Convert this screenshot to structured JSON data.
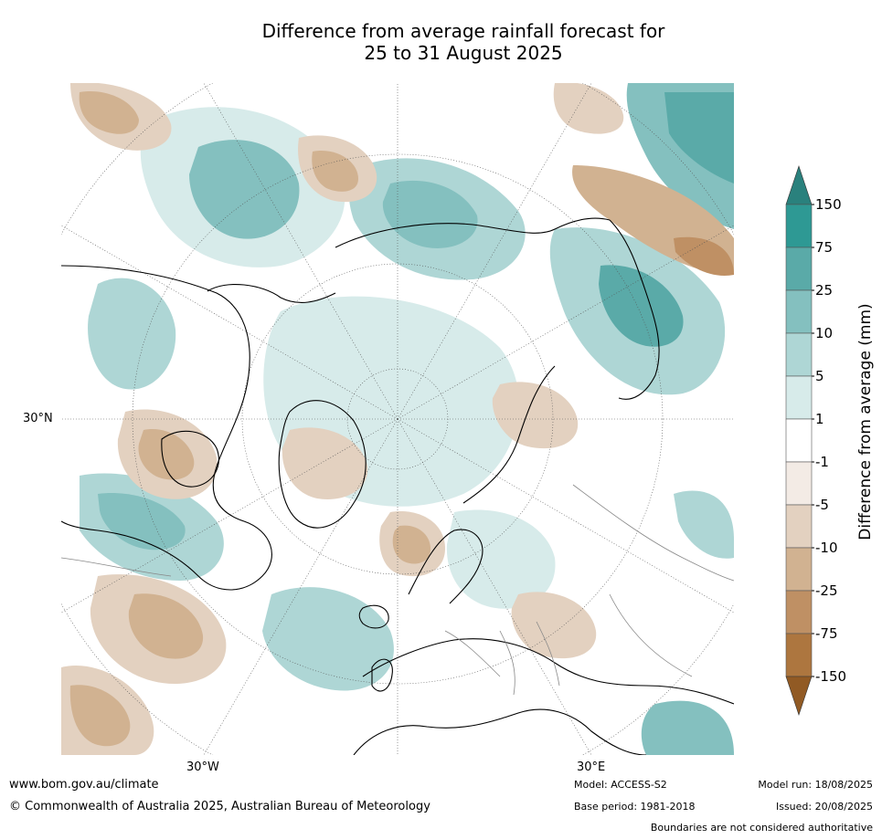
{
  "title_line1": "Difference from average rainfall forecast for",
  "title_line2": "25 to 31 August 2025",
  "map": {
    "lat_label_left": "30°N",
    "lon_label_left": "30°W",
    "lon_label_right": "30°E"
  },
  "legend": {
    "label": "Difference from average (mm)",
    "ticks": [
      "150",
      "75",
      "25",
      "10",
      "5",
      "1",
      "-1",
      "-5",
      "-10",
      "-25",
      "-75",
      "-150"
    ],
    "colors": [
      "#2a817d",
      "#2e9994",
      "#5aaaa8",
      "#84c0bf",
      "#aed6d5",
      "#d7ebea",
      "#ffffff",
      "#f3ebe5",
      "#e3d1c0",
      "#d1b291",
      "#bf9064",
      "#ad763f",
      "#915a24"
    ]
  },
  "footer": {
    "url": "www.bom.gov.au/climate",
    "copyright": "© Commonwealth of Australia 2025, Australian Bureau of Meteorology",
    "model": "Model: ACCESS-S2",
    "base_period": "Base period: 1981-2018",
    "model_run": "Model run: 18/08/2025",
    "issued": "Issued: 20/08/2025",
    "disclaimer": "Boundaries are not considered authoritative"
  }
}
